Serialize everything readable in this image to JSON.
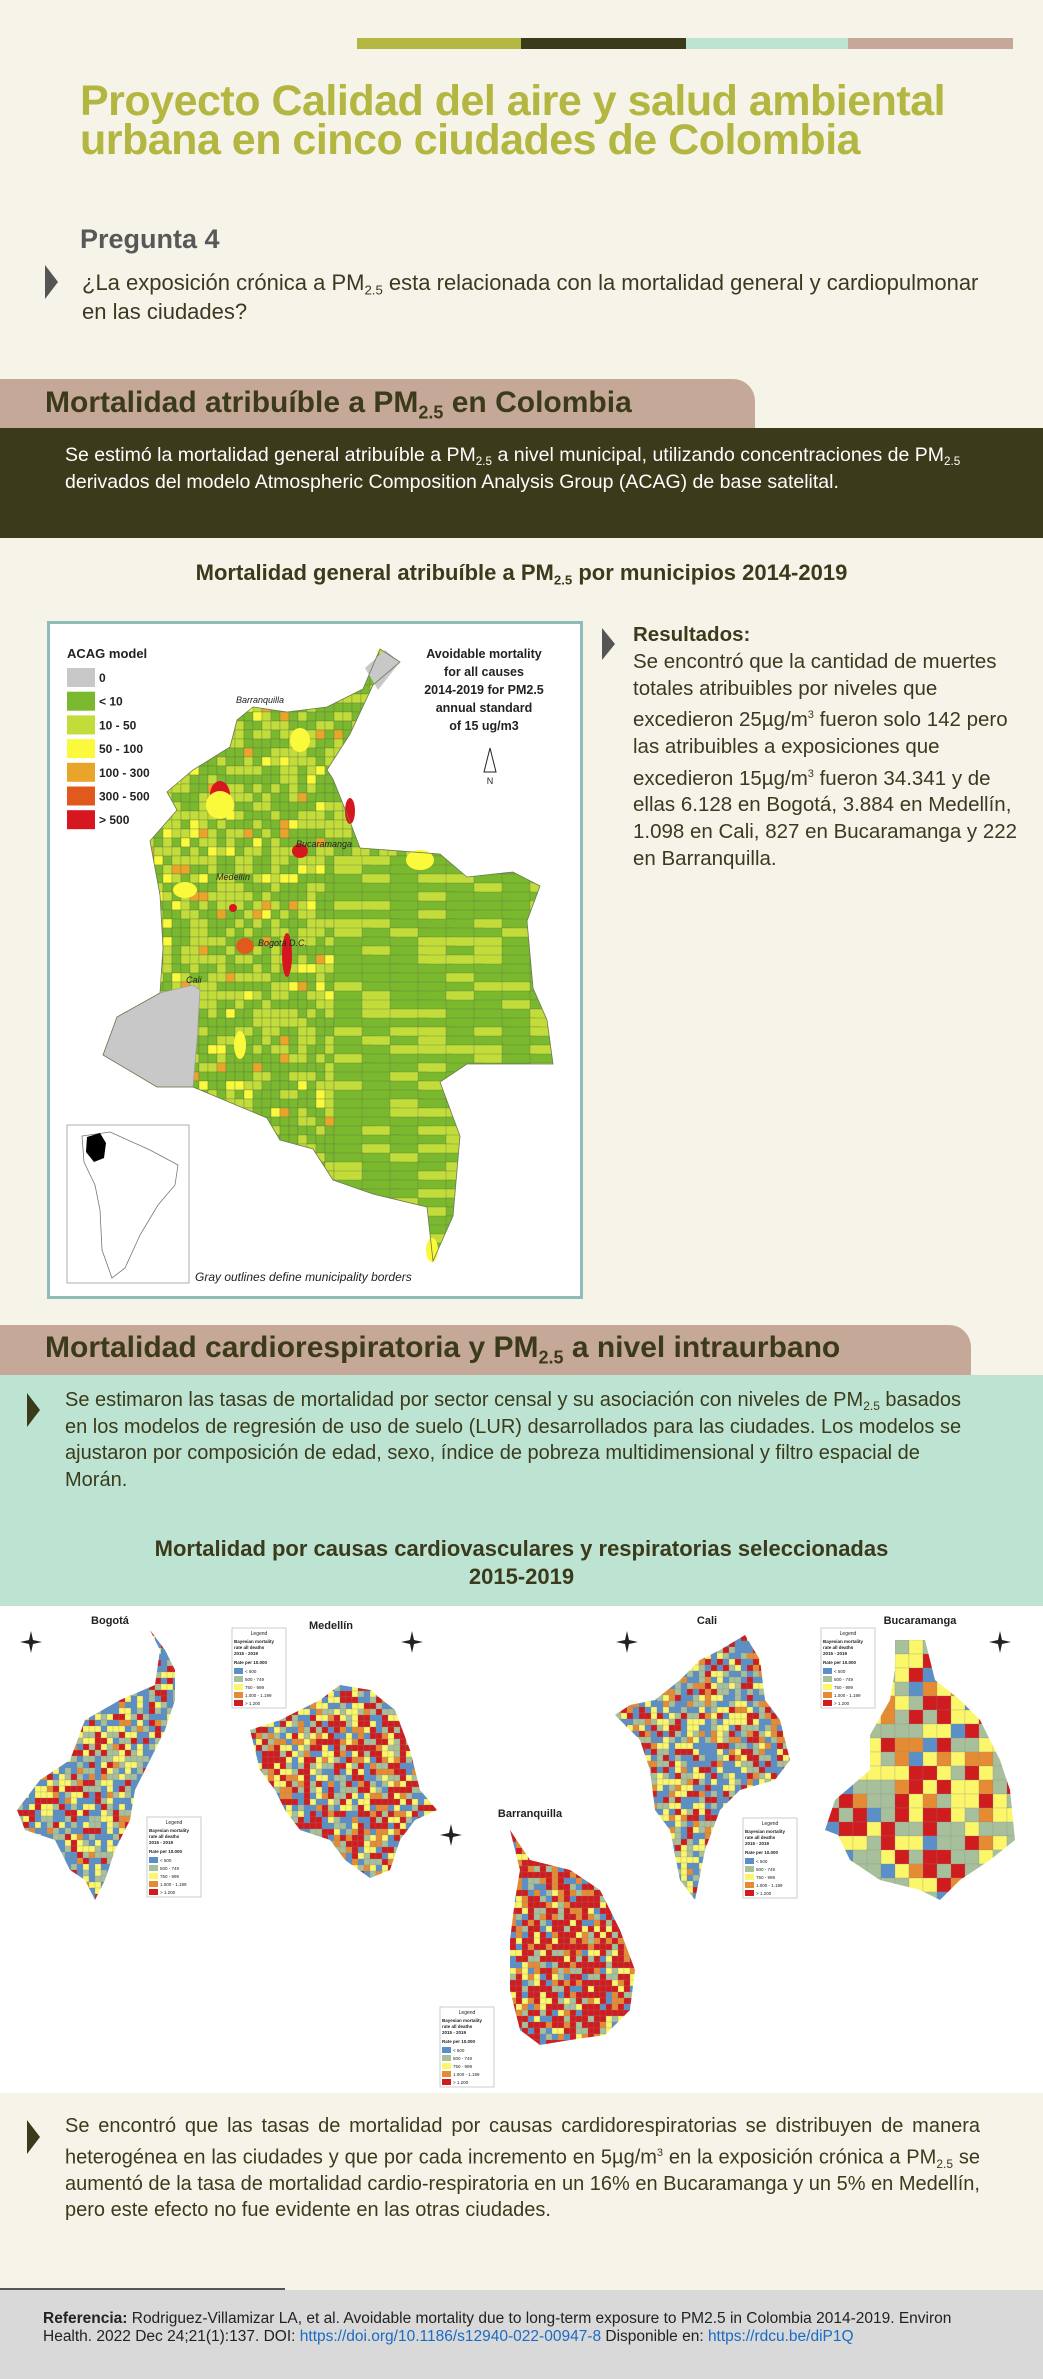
{
  "colors": {
    "olive": "#b3b640",
    "dark": "#3b3b1b",
    "mint": "#bde3d3",
    "pink": "#c6a898",
    "cream": "#f6f4e8",
    "link": "#1a6bc4"
  },
  "header": {
    "title": "Proyecto Calidad del aire y salud ambiental urbana en cinco ciudades de Colombia",
    "question_label": "Pregunta 4",
    "question": {
      "pre": "¿La exposición crónica a PM",
      "sub": "2.5",
      "post": " esta relacionada con la mortalidad general y cardiopulmonar en las ciudades?"
    }
  },
  "section1": {
    "heading": {
      "pre": "Mortalidad atribuíble a PM",
      "sub": "2.5",
      "post": " en Colombia"
    },
    "intro": {
      "p1": "Se estimó la mortalidad general atribuíble a PM",
      "s1": "2.5",
      "p2": " a nivel municipal, utilizando concentraciones de PM",
      "s2": "2.5",
      "p3": " derivados del modelo Atmospheric Composition Analysis Group (ACAG) de base satelital."
    },
    "figure_title": {
      "pre": "Mortalidad general atribuíble a PM",
      "sub": "2.5",
      "post": " por municipios 2014-2019"
    },
    "map": {
      "legend_title": "ACAG model",
      "legend": [
        {
          "label": "0",
          "color": "#c8c8c8"
        },
        {
          "label": "< 10",
          "color": "#7ab82e"
        },
        {
          "label": "10 - 50",
          "color": "#c2dc3a"
        },
        {
          "label": "50 - 100",
          "color": "#fbf93b"
        },
        {
          "label": "100 - 300",
          "color": "#e9a52a"
        },
        {
          "label": "300 - 500",
          "color": "#e05a1e"
        },
        {
          "label": "> 500",
          "color": "#d7171f"
        }
      ],
      "annotation": [
        "Avoidable mortality",
        "for all causes",
        "2014-2019 for PM2.5",
        "annual standard",
        "of 15 ug/m3"
      ],
      "north": "N",
      "cities": [
        "Barranquilla",
        "Bucaramanga",
        "Medellín",
        "Bogotá D.C.",
        "Cali"
      ],
      "caption": "Gray outlines define municipality borders"
    },
    "results": {
      "heading": "Resultados:",
      "t1": "Se encontró que la cantidad de muertes totales atribuibles por niveles que excedieron 25µg/m",
      "sup1": "3",
      "t2": " fueron solo 142 pero las atribuibles a exposiciones que excedieron 15µg/m",
      "sup2": "3",
      "t3": " fueron 34.341 y de ellas 6.128 en Bogotá, 3.884 en Medellín, 1.098 en Cali, 827 en Bucaramanga y 222 en Barranquilla."
    }
  },
  "section2": {
    "heading": {
      "pre": "Mortalidad cardiorespiratoria y PM",
      "sub": "2.5",
      "post": " a nivel intraurbano"
    },
    "intro": {
      "p1": "Se estimaron las tasas de mortalidad por sector censal y su asociación con niveles de PM",
      "s1": "2.5",
      "p2": " basados en los modelos de regresión de uso de suelo (LUR) desarrollados para las ciudades. Los modelos se ajustaron por composición de edad, sexo, índice de pobreza multidimensional y filtro espacial de Morán."
    },
    "figure_title": [
      "Mortalidad por causas cardiovasculares y respiratorias seleccionadas",
      "2015-2019"
    ],
    "city_maps": {
      "cities": [
        "Bogotá",
        "Medellín",
        "Cali",
        "Bucaramanga",
        "Barranquilla"
      ],
      "legend": {
        "title": "Legend",
        "desc": [
          "Bayesian mortality",
          "rate all deaths",
          "2015 - 2019"
        ],
        "rate": "Rate per 10.000",
        "items": [
          {
            "label": "< 500",
            "color": "#5b8fc7"
          },
          {
            "label": "500 - 749",
            "color": "#a7bf9a"
          },
          {
            "label": "750 - 999",
            "color": "#fbf66a"
          },
          {
            "label": "1.000 - 1.199",
            "color": "#e58b34"
          },
          {
            "label": "> 1.200",
            "color": "#cf1c1f"
          }
        ]
      }
    },
    "conclusion": {
      "p1": "Se encontró que las tasas de mortalidad por causas cardidorespiratorias se distribuyen de manera heterogénea en las ciudades y que por cada incremento en 5µg/m",
      "sup": "3",
      "p2": " en la exposición crónica a PM",
      "s1": "2.5",
      "p3": " se aumentó de la tasa de mortalidad cardio-respiratoria en un 16% en Bucaramanga y un 5% en Medellín, pero este efecto no fue evidente en las otras ciudades."
    }
  },
  "reference": {
    "label": "Referencia:",
    "text": " Rodriguez-Villamizar LA, et al. Avoidable mortality due to long-term exposure to PM2.5 in Colombia 2014-2019. Environ Health. 2022 Dec 24;21(1):137. DOI: ",
    "doi": "https://doi.org/10.1186/s12940-022-00947-8",
    "mid": " Disponible en: ",
    "link": "https://rdcu.be/diP1Q"
  }
}
